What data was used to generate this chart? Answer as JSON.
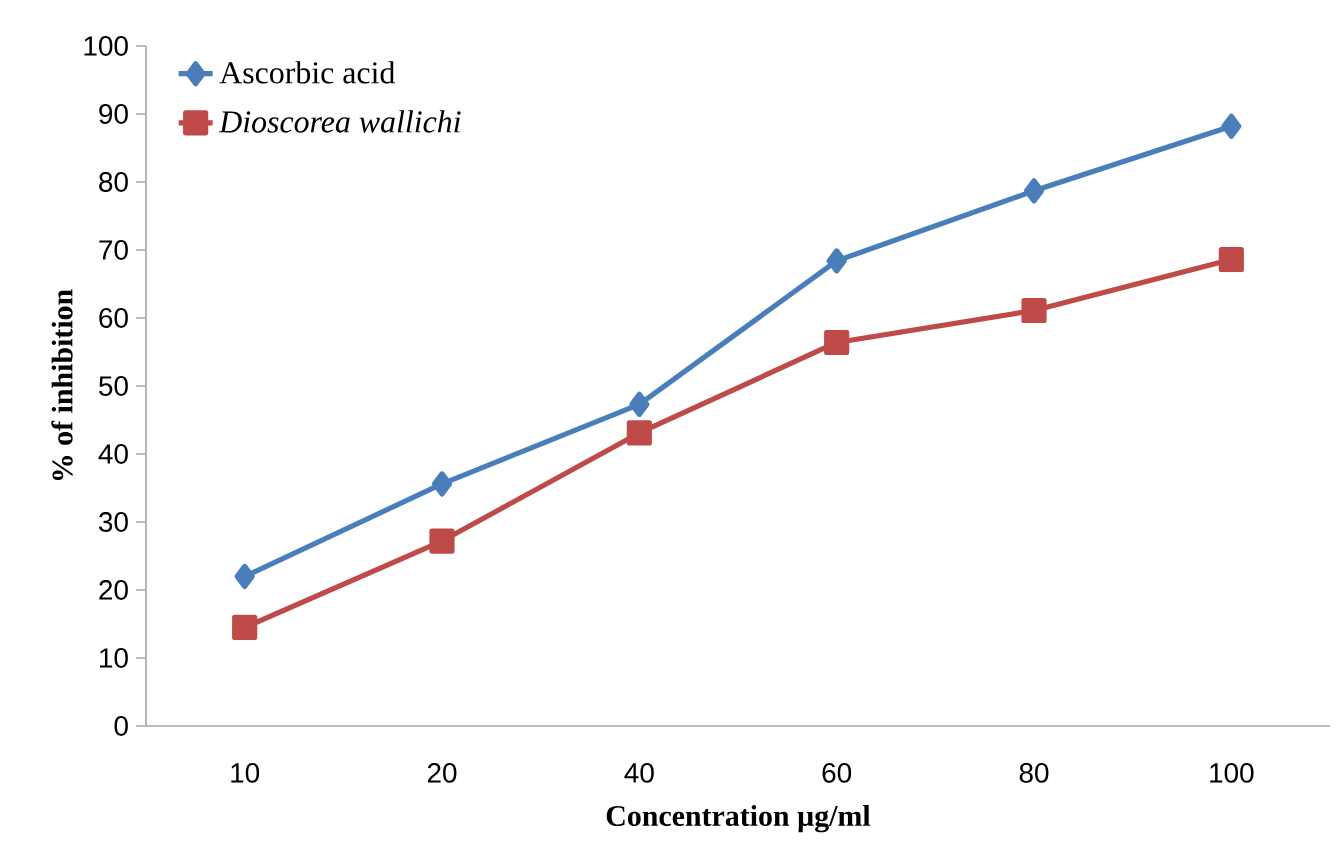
{
  "chart_data": {
    "type": "line",
    "xlabel": "Concentration µg/ml",
    "ylabel": "% of  inhibition",
    "categories": [
      "10",
      "20",
      "40",
      "60",
      "80",
      "100"
    ],
    "series": [
      {
        "name": "Ascorbic acid",
        "color": "#4a7ebb",
        "marker": "diamond",
        "values": [
          22.0,
          35.6,
          47.3,
          68.4,
          78.7,
          88.2
        ]
      },
      {
        "name": "Dioscorea wallichi",
        "color": "#be4b48",
        "marker": "square",
        "values": [
          14.5,
          27.2,
          43.1,
          56.4,
          61.1,
          68.6
        ]
      }
    ],
    "ylim": [
      0,
      100
    ],
    "yticks": [
      0,
      10,
      20,
      30,
      40,
      50,
      60,
      70,
      80,
      90,
      100
    ],
    "grid": false,
    "legend": "top left"
  }
}
